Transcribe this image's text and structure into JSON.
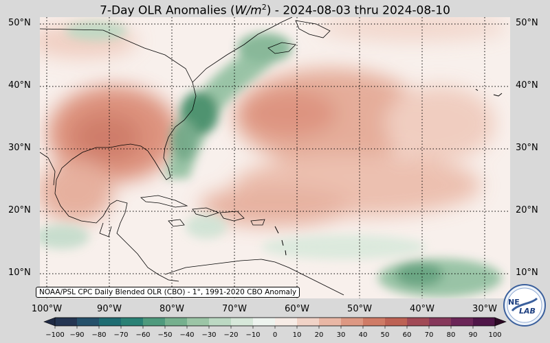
{
  "title": {
    "prefix": "7-Day OLR Anomalies (",
    "unit_base": "W/m",
    "unit_exp": "2",
    "suffix": ") - 2024-08-03 thru 2024-08-10"
  },
  "map": {
    "latitude_labels": [
      "50°N",
      "40°N",
      "30°N",
      "20°N",
      "10°N"
    ],
    "longitude_labels": [
      "100°W",
      "90°W",
      "80°W",
      "70°W",
      "60°W",
      "50°W",
      "40°W",
      "30°W"
    ],
    "anomaly_fields": [
      {
        "region": "Gulf of Mexico / southern US",
        "sign": "positive",
        "peak": 45
      },
      {
        "region": "US East Coast / Carolinas",
        "sign": "negative",
        "peak": -50
      },
      {
        "region": "Central subtropical Atlantic",
        "sign": "positive",
        "peak": 35
      },
      {
        "region": "Eastern tropical Atlantic",
        "sign": "negative",
        "peak": -30
      },
      {
        "region": "Nova Scotia / Newfoundland",
        "sign": "negative",
        "peak": -25
      }
    ],
    "colors": {
      "negative": "#3d8a63",
      "positive": "#c96a55",
      "neutral": "#f8f2ee"
    }
  },
  "colorbar": {
    "ticks": [
      "−100",
      "−90",
      "−80",
      "−70",
      "−60",
      "−50",
      "−40",
      "−30",
      "−20",
      "−10",
      "0",
      "10",
      "20",
      "30",
      "40",
      "50",
      "60",
      "70",
      "80",
      "90",
      "100"
    ]
  },
  "credit": "NOAA/PSL CPC Daily Blended OLR (CBO) - 1°, 1991-2020 CBO Anomaly",
  "logo_text": {
    "line1": "NE",
    "line2": "LAB"
  }
}
